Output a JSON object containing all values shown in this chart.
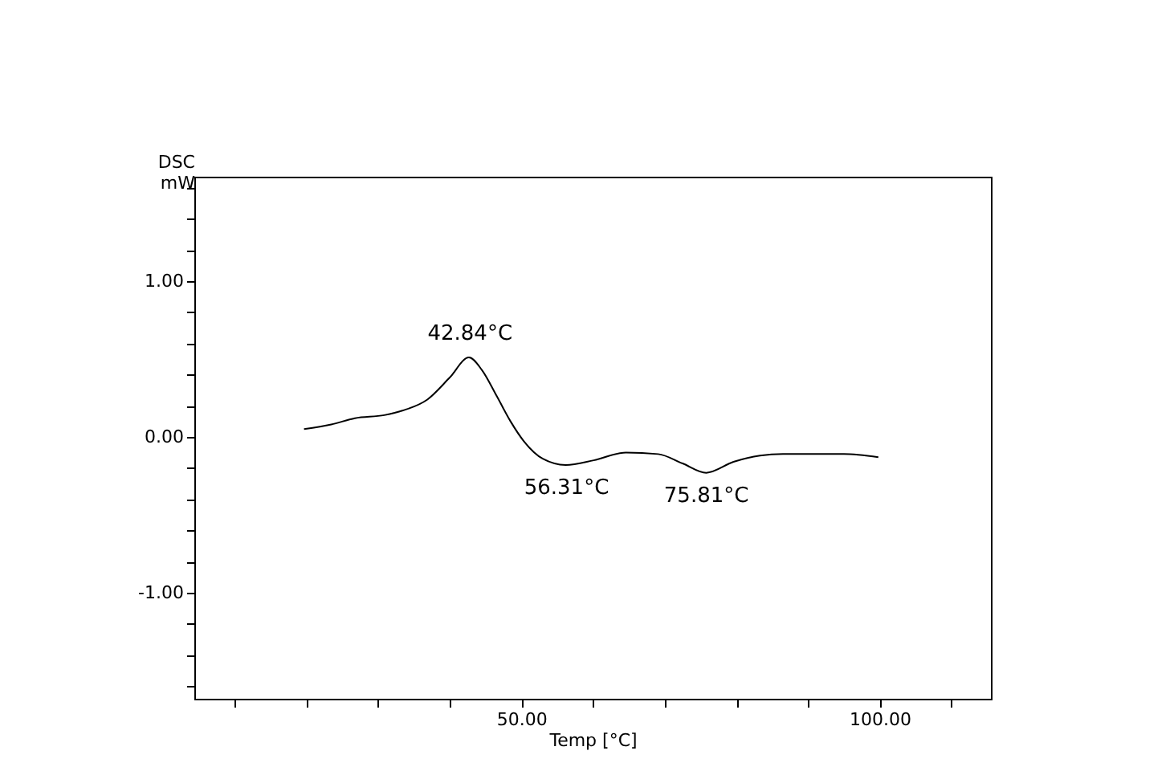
{
  "chart_data": {
    "type": "line",
    "xlabel": "Temp [°C]",
    "ylabel": "DSC\nmW",
    "x": [
      19.7,
      23.5,
      26.8,
      30.9,
      33.5,
      36.9,
      40.0,
      42.7,
      44.5,
      46.6,
      48.5,
      50.4,
      53.0,
      56.2,
      60.1,
      64.6,
      69.1,
      72.5,
      75.8,
      79.6,
      83.3,
      86.5,
      90.1,
      95.0,
      99.8
    ],
    "series": [
      {
        "color": "#000000",
        "values": [
          0.05,
          0.08,
          0.12,
          0.14,
          0.17,
          0.24,
          0.38,
          0.51,
          0.43,
          0.26,
          0.1,
          -0.03,
          -0.14,
          -0.18,
          -0.15,
          -0.1,
          -0.11,
          -0.17,
          -0.23,
          -0.16,
          -0.12,
          -0.11,
          -0.11,
          -0.11,
          -0.13
        ]
      }
    ],
    "xlim": [
      4.4,
      115.5
    ],
    "xticks": [
      {
        "value": 10,
        "label": null
      },
      {
        "value": 20,
        "label": null
      },
      {
        "value": 30,
        "label": null
      },
      {
        "value": 40,
        "label": null
      },
      {
        "value": 50,
        "label": "50.00"
      },
      {
        "value": 60,
        "label": null
      },
      {
        "value": 70,
        "label": null
      },
      {
        "value": 80,
        "label": null
      },
      {
        "value": 90,
        "label": null
      },
      {
        "value": 100,
        "label": "100.00"
      },
      {
        "value": 110,
        "label": null
      }
    ],
    "ylim": [
      -1.68,
      1.67
    ],
    "yticks": [
      {
        "value": -1.6,
        "label": null
      },
      {
        "value": -1.4,
        "label": null
      },
      {
        "value": -1.2,
        "label": null
      },
      {
        "value": -1,
        "label": "-1.00"
      },
      {
        "value": -0.8,
        "label": null
      },
      {
        "value": -0.6,
        "label": null
      },
      {
        "value": -0.4,
        "label": null
      },
      {
        "value": -0.2,
        "label": null
      },
      {
        "value": 0,
        "label": "0.00"
      },
      {
        "value": 0.2,
        "label": null
      },
      {
        "value": 0.4,
        "label": null
      },
      {
        "value": 0.6,
        "label": null
      },
      {
        "value": 0.8,
        "label": null
      },
      {
        "value": 1,
        "label": "1.00"
      },
      {
        "value": 1.2,
        "label": null
      },
      {
        "value": 1.4,
        "label": null
      },
      {
        "value": 1.6,
        "label": null
      }
    ],
    "grid": false,
    "marker": "none",
    "line_style": "solid",
    "annotations": [
      {
        "text": "42.84°C",
        "x": 42.84,
        "y": 0.51
      },
      {
        "text": "56.31°C",
        "x": 56.31,
        "y": -0.18
      },
      {
        "text": "75.81°C",
        "x": 75.81,
        "y": -0.23
      }
    ]
  }
}
